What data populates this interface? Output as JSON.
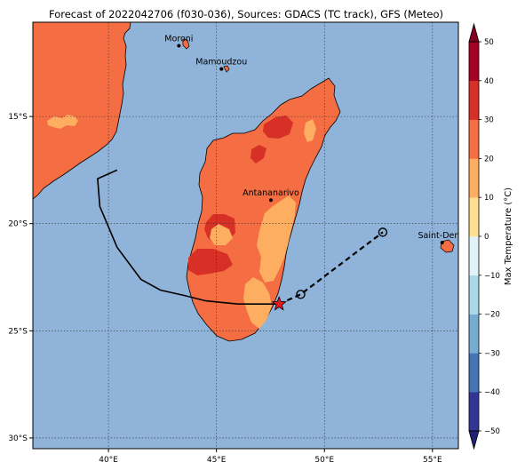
{
  "title": "Forecast of 2022042706 (f030-036), Sources: GDACS (TC track), GFS (Meteo)",
  "colors": {
    "ocean": "#8fb3d9",
    "land_20_30": "#f46d43",
    "land_10_20": "#fdae61",
    "land_30_40": "#d73027",
    "track": "#000000",
    "storm_marker": "#e8181f"
  },
  "map": {
    "lon_range": [
      36.5,
      56.2
    ],
    "lat_range": [
      -30.5,
      -10.6
    ],
    "lon_ticks": [
      {
        "lon": 40,
        "label": "40°E"
      },
      {
        "lon": 45,
        "label": "45°E"
      },
      {
        "lon": 50,
        "label": "50°E"
      },
      {
        "lon": 55,
        "label": "55°E"
      }
    ],
    "lat_ticks": [
      {
        "lat": -15,
        "label": "15°S"
      },
      {
        "lat": -20,
        "label": "20°S"
      },
      {
        "lat": -25,
        "label": "25°S"
      },
      {
        "lat": -30,
        "label": "30°S"
      }
    ],
    "grid": true
  },
  "cities": [
    {
      "name": "Moroni",
      "lon": 43.26,
      "lat": -11.7
    },
    {
      "name": "Mamoudzou",
      "lon": 45.23,
      "lat": -12.78
    },
    {
      "name": "Antananarivo",
      "lon": 47.52,
      "lat": -18.9
    },
    {
      "name": "Saint-Denis",
      "lon": 55.45,
      "lat": -20.88
    }
  ],
  "track": {
    "observed": [
      [
        40.4,
        -17.5
      ],
      [
        39.5,
        -17.9
      ],
      [
        39.6,
        -19.2
      ],
      [
        40.4,
        -21.1
      ],
      [
        41.5,
        -22.6
      ],
      [
        42.4,
        -23.1
      ],
      [
        43.5,
        -23.35
      ],
      [
        44.5,
        -23.6
      ],
      [
        46.0,
        -23.75
      ],
      [
        47.9,
        -23.75
      ]
    ],
    "forecast": [
      [
        47.9,
        -23.75
      ],
      [
        48.9,
        -23.3
      ],
      [
        52.7,
        -20.4
      ]
    ],
    "current_position": [
      47.9,
      -23.75
    ],
    "forecast_points": [
      [
        48.9,
        -23.3
      ],
      [
        52.7,
        -20.4
      ]
    ]
  },
  "colorbar": {
    "label": "Max Temperature (°C)",
    "min": -50,
    "max": 50,
    "step": 10,
    "ticks": [
      "50",
      "40",
      "30",
      "20",
      "10",
      "0",
      "−10",
      "−20",
      "−30",
      "−40",
      "−50"
    ],
    "band_colors": [
      "#313695",
      "#4575b4",
      "#74add1",
      "#abd9e9",
      "#e0f3f8",
      "#fee090",
      "#fdae61",
      "#f46d43",
      "#d73027",
      "#a50026"
    ],
    "extend_low": "#202076",
    "extend_high": "#820020"
  }
}
